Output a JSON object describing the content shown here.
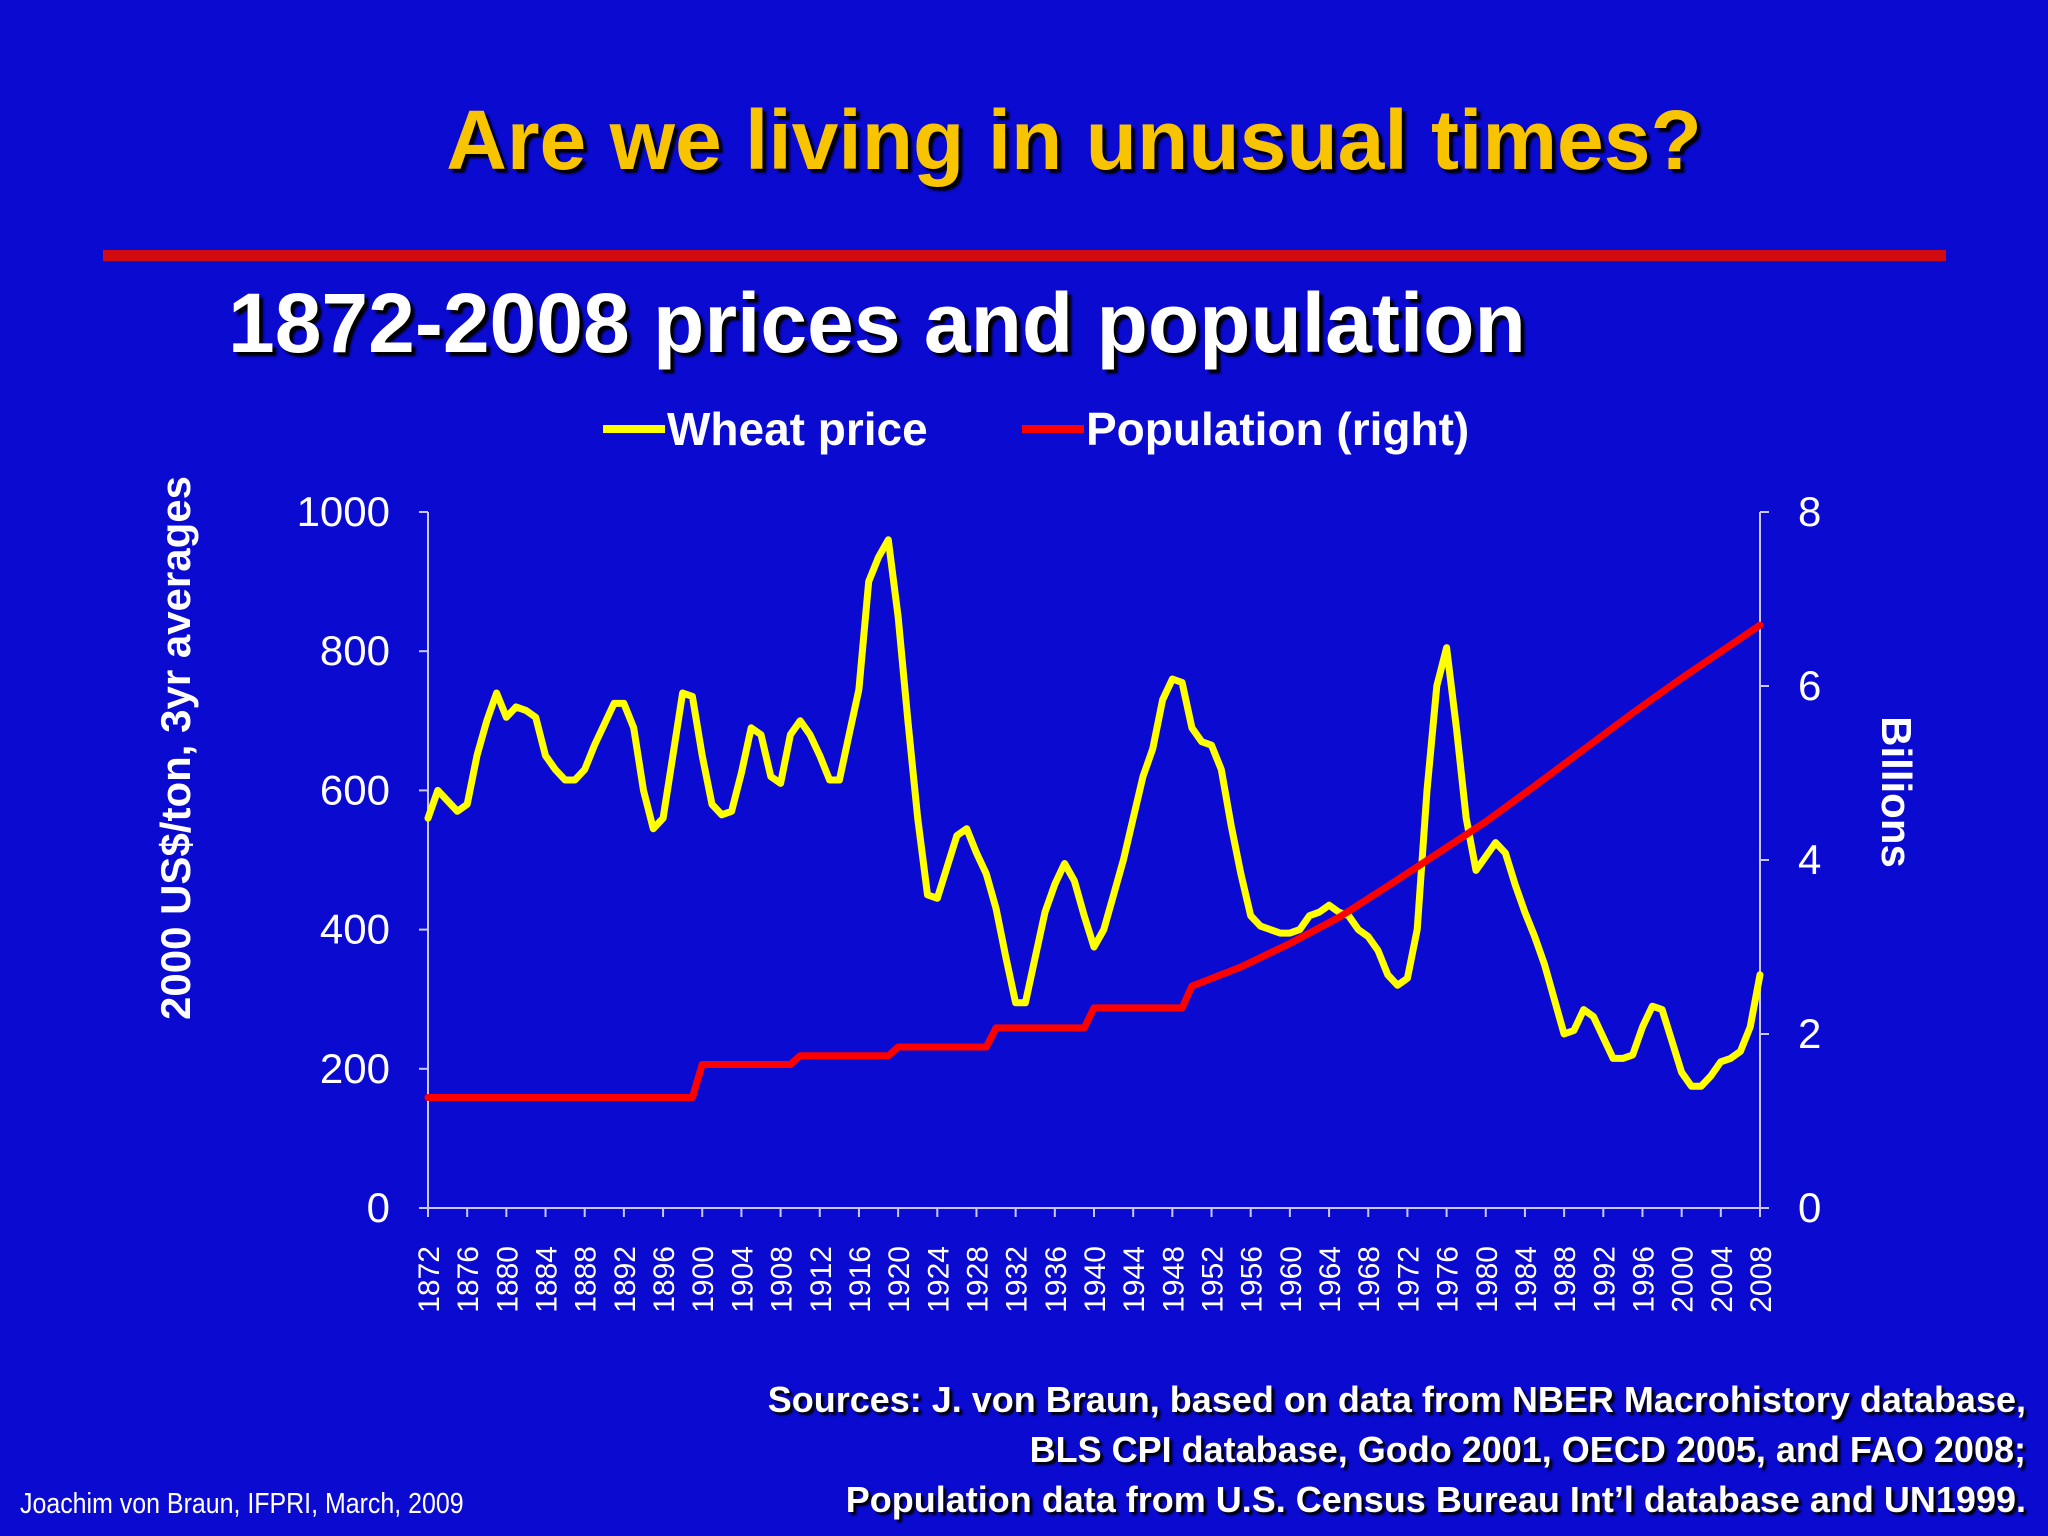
{
  "slide": {
    "title": "Are we living in unusual times?",
    "credit": "Joachim von Braun, IFPRI, March, 2009",
    "sources": [
      "Sources: J. von Braun, based on data from NBER Macrohistory database,",
      "BLS CPI database, Godo  2001, OECD 2005, and FAO 2008;",
      "Population data from U.S. Census Bureau Int’l database and UN1999."
    ]
  },
  "colors": {
    "background": "#0a0ad0",
    "title": "#f8c400",
    "divider": "#d20a12",
    "wheat": "#ffff00",
    "population": "#ff0000",
    "axis": "#c8c8ff",
    "text": "#ffffff"
  },
  "chart_data": {
    "type": "line",
    "title": "1872-2008 prices and population",
    "ylabel": "2000 US$/ton, 3yr averages",
    "y2label": "Billions",
    "ylim": [
      0,
      1000
    ],
    "yticks": [
      0,
      200,
      400,
      600,
      800,
      1000
    ],
    "y2lim": [
      0,
      8
    ],
    "y2ticks": [
      0,
      2,
      4,
      6,
      8
    ],
    "xlim": [
      1872,
      2008
    ],
    "xticks": [
      1872,
      1876,
      1880,
      1884,
      1888,
      1892,
      1896,
      1900,
      1904,
      1908,
      1912,
      1916,
      1920,
      1924,
      1928,
      1932,
      1936,
      1940,
      1944,
      1948,
      1952,
      1956,
      1960,
      1964,
      1968,
      1972,
      1976,
      1980,
      1984,
      1988,
      1992,
      1996,
      2000,
      2004,
      2008
    ],
    "legend_position": "top",
    "grid": false,
    "series": [
      {
        "name": "Wheat price",
        "axis": "left",
        "x": [
          1872,
          1873,
          1874,
          1875,
          1876,
          1877,
          1878,
          1879,
          1880,
          1881,
          1882,
          1883,
          1884,
          1885,
          1886,
          1887,
          1888,
          1889,
          1890,
          1891,
          1892,
          1893,
          1894,
          1895,
          1896,
          1897,
          1898,
          1899,
          1900,
          1901,
          1902,
          1903,
          1904,
          1905,
          1906,
          1907,
          1908,
          1909,
          1910,
          1911,
          1912,
          1913,
          1914,
          1915,
          1916,
          1917,
          1918,
          1919,
          1920,
          1921,
          1922,
          1923,
          1924,
          1925,
          1926,
          1927,
          1928,
          1929,
          1930,
          1931,
          1932,
          1933,
          1934,
          1935,
          1936,
          1937,
          1938,
          1939,
          1940,
          1941,
          1942,
          1943,
          1944,
          1945,
          1946,
          1947,
          1948,
          1949,
          1950,
          1951,
          1952,
          1953,
          1954,
          1955,
          1956,
          1957,
          1958,
          1959,
          1960,
          1961,
          1962,
          1963,
          1964,
          1965,
          1966,
          1967,
          1968,
          1969,
          1970,
          1971,
          1972,
          1973,
          1974,
          1975,
          1976,
          1977,
          1978,
          1979,
          1980,
          1981,
          1982,
          1983,
          1984,
          1985,
          1986,
          1987,
          1988,
          1989,
          1990,
          1991,
          1992,
          1993,
          1994,
          1995,
          1996,
          1997,
          1998,
          1999,
          2000,
          2001,
          2002,
          2003,
          2004,
          2005,
          2006,
          2007,
          2008
        ],
        "values": [
          560,
          600,
          585,
          570,
          580,
          650,
          700,
          740,
          705,
          720,
          715,
          705,
          650,
          630,
          615,
          615,
          630,
          665,
          695,
          725,
          725,
          690,
          600,
          545,
          560,
          650,
          740,
          735,
          650,
          580,
          565,
          570,
          625,
          690,
          680,
          620,
          610,
          680,
          700,
          680,
          650,
          615,
          615,
          680,
          745,
          900,
          935,
          960,
          850,
          700,
          560,
          450,
          445,
          490,
          535,
          545,
          510,
          480,
          430,
          360,
          295,
          295,
          360,
          425,
          465,
          495,
          470,
          420,
          375,
          400,
          450,
          500,
          560,
          620,
          660,
          730,
          760,
          755,
          690,
          670,
          665,
          630,
          550,
          480,
          420,
          405,
          400,
          395,
          395,
          400,
          420,
          425,
          435,
          425,
          420,
          400,
          390,
          370,
          335,
          320,
          330,
          400,
          600,
          750,
          805,
          690,
          560,
          485,
          505,
          525,
          510,
          465,
          425,
          390,
          350,
          300,
          250,
          255,
          285,
          275,
          245,
          215,
          215,
          220,
          260,
          290,
          285,
          240,
          195,
          175,
          175,
          190,
          210,
          215,
          225,
          260,
          335
        ]
      },
      {
        "name": "Population (right)",
        "axis": "right",
        "x": [
          1872,
          1899,
          1900,
          1909,
          1910,
          1919,
          1920,
          1929,
          1930,
          1939,
          1940,
          1949,
          1950,
          1955,
          1960,
          1965,
          1970,
          1975,
          1980,
          1985,
          1990,
          1995,
          2000,
          2005,
          2008
        ],
        "values": [
          1.27,
          1.27,
          1.65,
          1.65,
          1.75,
          1.75,
          1.85,
          1.85,
          2.07,
          2.07,
          2.3,
          2.3,
          2.55,
          2.77,
          3.04,
          3.34,
          3.7,
          4.07,
          4.44,
          4.85,
          5.27,
          5.69,
          6.09,
          6.47,
          6.7
        ]
      }
    ]
  }
}
